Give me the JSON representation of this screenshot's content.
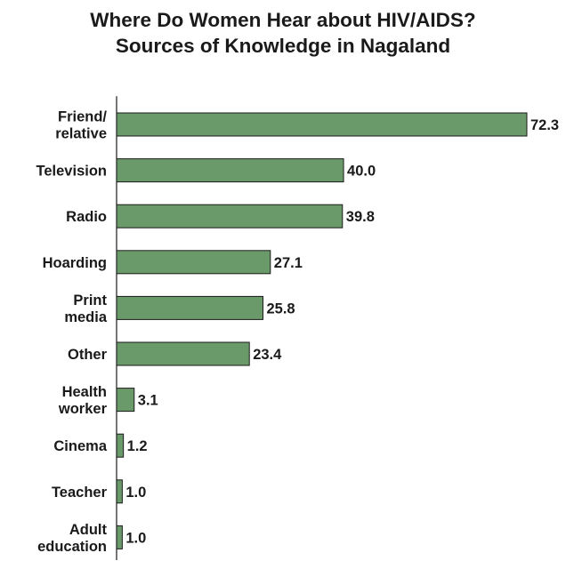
{
  "chart_data": {
    "type": "bar",
    "orientation": "horizontal",
    "title": "Where Do Women Hear about HIV/AIDS?",
    "subtitle": "Sources of Knowledge in Nagaland",
    "categories": [
      [
        "Friend/",
        "relative"
      ],
      [
        "Television"
      ],
      [
        "Radio"
      ],
      [
        "Hoarding"
      ],
      [
        "Print",
        "media"
      ],
      [
        "Other"
      ],
      [
        "Health",
        "worker"
      ],
      [
        "Cinema"
      ],
      [
        "Teacher"
      ],
      [
        "Adult",
        "education"
      ]
    ],
    "values": [
      72.3,
      40.0,
      39.8,
      27.1,
      25.8,
      23.4,
      3.1,
      1.2,
      1.0,
      1.0
    ],
    "value_labels": [
      "72.3",
      "40.0",
      "39.8",
      "27.1",
      "25.8",
      "23.4",
      "3.1",
      "1.2",
      "1.0",
      "1.0"
    ],
    "xlim": [
      0,
      72.3
    ],
    "grid": false,
    "legend": "none",
    "colors": {
      "bar_fill": "#6a9a6a",
      "bar_stroke": "#1a1a1a",
      "axis": "#1a1a1a",
      "text": "#1a1a1a"
    }
  }
}
